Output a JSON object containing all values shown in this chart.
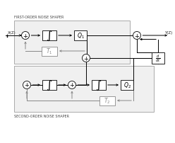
{
  "title_top": "FIRST-ORDER NOISE SHAPER",
  "title_bottom": "SECOND-ORDER NOISE SHAPER",
  "bg_color": "#ffffff",
  "line_color": "#000000",
  "gray_color": "#888888",
  "fig_width": 2.48,
  "fig_height": 2.03
}
